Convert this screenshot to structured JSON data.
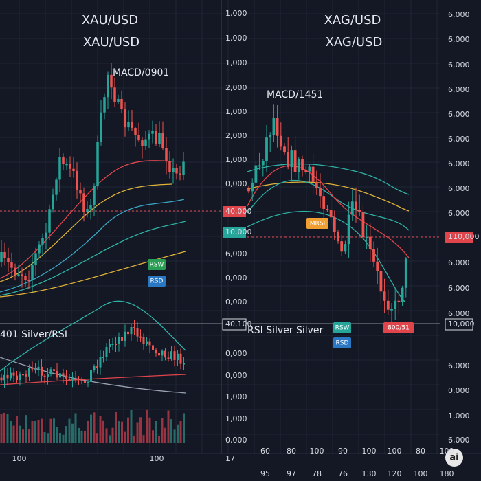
{
  "left_panel": {
    "titles": [
      "XAU/USD",
      "XAU/USD"
    ],
    "indicator": "MACD/0901",
    "lower_label": "401 Silver/RSI",
    "badges": [
      "RSW",
      "RSD"
    ],
    "axis_labels": [
      "1,000",
      "1,000",
      "1,000",
      "2,000",
      "1,000",
      "2,000",
      "1,000",
      "0,000",
      "40,000",
      "10,000",
      "6,000",
      "0,000",
      "0,000",
      "40,100",
      "0,000",
      "0,000",
      "1,000",
      "1,000",
      "0,000",
      "17"
    ],
    "x_labels": [
      "100",
      "100"
    ]
  },
  "right_panel": {
    "titles": [
      "XAG/USD",
      "XAG/USD"
    ],
    "indicator": "MACD/1451",
    "lower_label": "RSI Silver Silver",
    "badges": [
      "MRSI",
      "RSW",
      "RSD",
      "800/51"
    ],
    "axis_labels": [
      "6,000",
      "6,000",
      "6,000",
      "6,000",
      "6,000",
      "6,000",
      "6,000",
      "6,000",
      "6,000",
      "110,000",
      "6,000",
      "6,000",
      "6,000",
      "10,000",
      "6,000",
      "0,000",
      "1,000",
      "6,000"
    ],
    "x_labels_top": [
      "60",
      "80",
      "100",
      "90",
      "100",
      "100",
      "80",
      "100"
    ],
    "x_labels_bottom": [
      "95",
      "97",
      "78",
      "76",
      "130",
      "120",
      "100",
      "180"
    ]
  },
  "logo": "ai"
}
